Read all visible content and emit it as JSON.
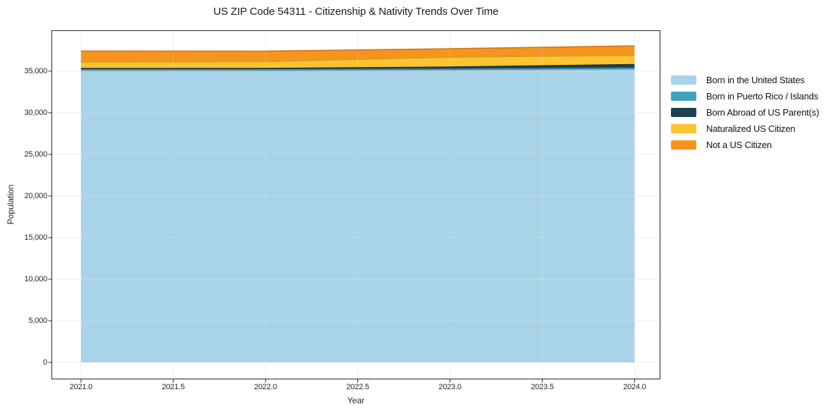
{
  "chart_data": {
    "type": "area",
    "stacked": true,
    "title": "US ZIP Code 54311 - Citizenship & Nativity Trends Over Time",
    "xlabel": "Year",
    "ylabel": "Population",
    "x": [
      2021,
      2022,
      2023,
      2024
    ],
    "series": [
      {
        "name": "Born in the United States",
        "color": "#a8d3e8",
        "values": [
          35050,
          35050,
          35100,
          35200
        ]
      },
      {
        "name": "Born in Puerto Rico / Islands",
        "color": "#42a3bf",
        "values": [
          150,
          150,
          140,
          170
        ]
      },
      {
        "name": "Born Abroad of US Parent(s)",
        "color": "#1d4054",
        "values": [
          110,
          120,
          250,
          420
        ]
      },
      {
        "name": "Naturalized US Citizen",
        "color": "#fdc330",
        "values": [
          780,
          830,
          1180,
          1100
        ]
      },
      {
        "name": "Not a US Citizen",
        "color": "#f7941e",
        "values": [
          1320,
          1250,
          1020,
          1150
        ]
      }
    ],
    "totals": [
      37410,
      37400,
      37690,
      38040
    ],
    "xticks": {
      "values": [
        2021,
        2021.5,
        2022,
        2022.5,
        2023,
        2023.5,
        2024
      ],
      "labels": [
        "2021.0",
        "2021.5",
        "2022.0",
        "2022.5",
        "2023.0",
        "2023.5",
        "2024.0"
      ]
    },
    "yticks": {
      "values": [
        0,
        5000,
        10000,
        15000,
        20000,
        25000,
        30000,
        35000
      ],
      "labels": [
        "0",
        "5,000",
        "10,000",
        "15,000",
        "20,000",
        "25,000",
        "30,000",
        "35,000"
      ]
    },
    "xlim": [
      2020.84,
      2024.14
    ],
    "ylim": [
      -2030,
      39900
    ],
    "grid": true,
    "legend_position": "right-outside",
    "colors": {
      "background": "#ffffff",
      "spine": "#262626",
      "grid": "#e8e8e8",
      "tick_text": "#262626",
      "title_text": "#1a1a1a"
    }
  }
}
